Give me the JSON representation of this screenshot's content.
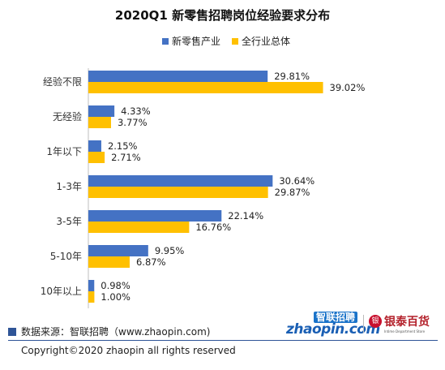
{
  "chart_data": {
    "type": "bar",
    "orientation": "horizontal",
    "title": "2020Q1 新零售招聘岗位经验要求分布",
    "categories": [
      "经验不限",
      "无经验",
      "1年以下",
      "1-3年",
      "3-5年",
      "5-10年",
      "10年以上"
    ],
    "series": [
      {
        "name": "新零售产业",
        "color": "#4472c4",
        "values": [
          29.81,
          4.33,
          2.15,
          30.64,
          22.14,
          9.95,
          0.98
        ],
        "labels": [
          "29.81%",
          "4.33%",
          "2.15%",
          "30.64%",
          "22.14%",
          "9.95%",
          "0.98%"
        ]
      },
      {
        "name": "全行业总体",
        "color": "#ffc000",
        "values": [
          39.02,
          3.77,
          2.71,
          29.87,
          16.76,
          6.87,
          1.0
        ],
        "labels": [
          "39.02%",
          "3.77%",
          "2.71%",
          "29.87%",
          "16.76%",
          "6.87%",
          "1.00%"
        ]
      }
    ],
    "xlim": [
      0,
      40
    ],
    "legend_position": "top",
    "grid": false
  },
  "footer": {
    "source": "数据来源：智联招聘（www.zhaopin.com)",
    "copyright": "Copyright©2020 zhaopin all rights reserved"
  },
  "logos": {
    "zhaopin_top": "智联招聘",
    "zhaopin_main": "zhaopin.com",
    "yintai_mark": "银",
    "yintai_name": "银泰百货",
    "yintai_sub": "Intime Department Store"
  }
}
